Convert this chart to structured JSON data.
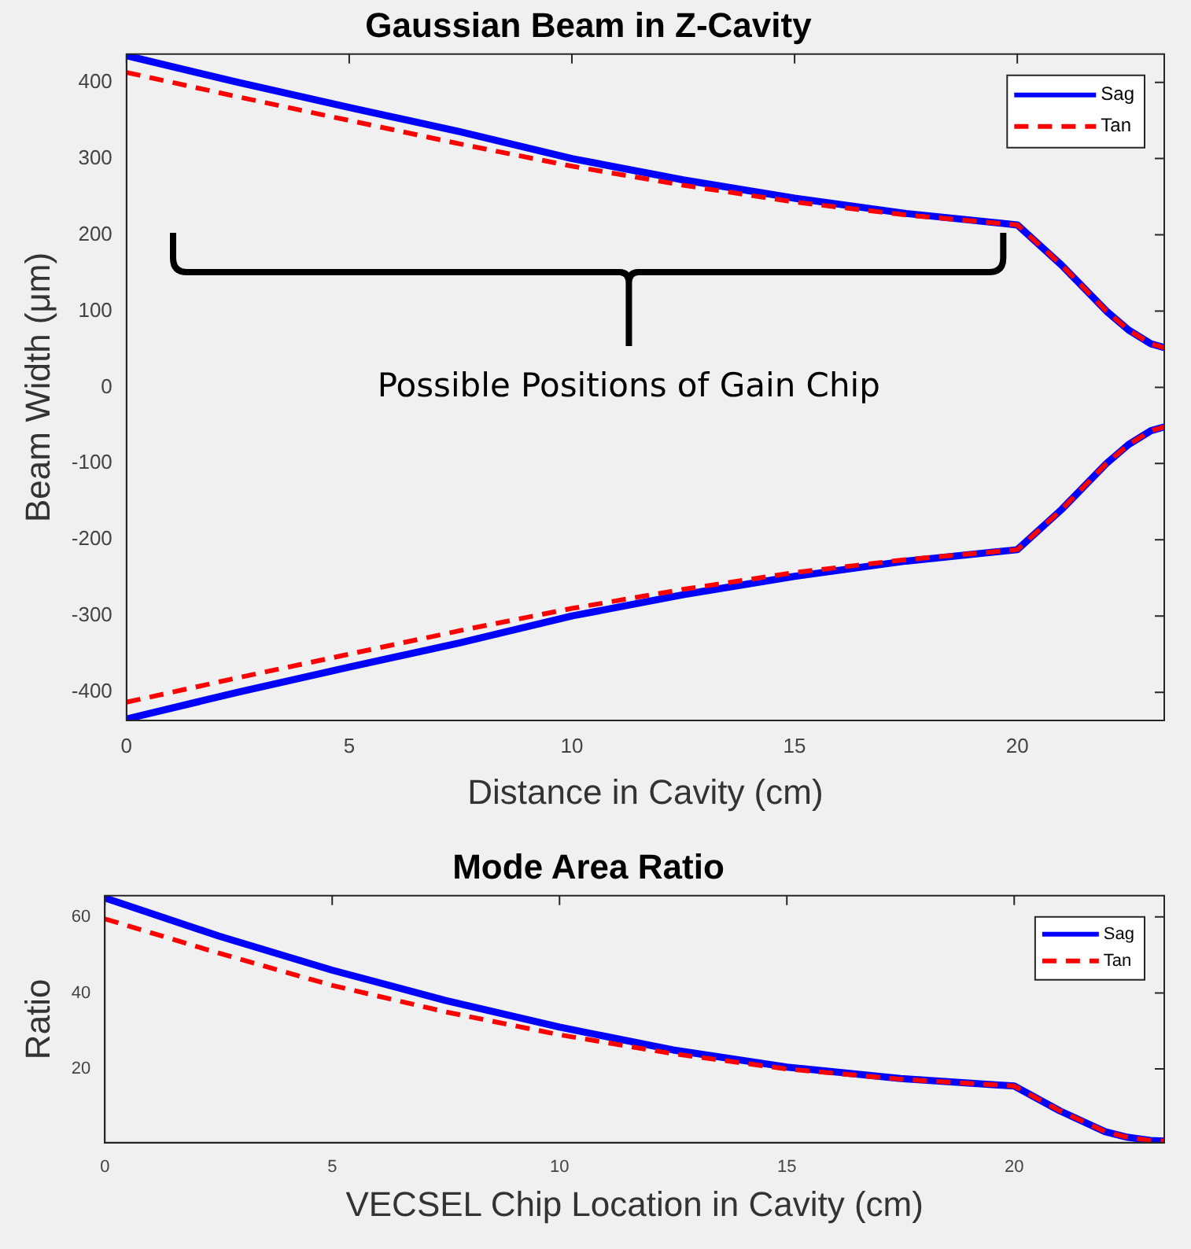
{
  "chart_data": [
    {
      "type": "line",
      "title": "Gaussian Beam in Z-Cavity",
      "xlabel": "Distance in Cavity (cm)",
      "ylabel": "Beam Width (μm)",
      "xlim": [
        0,
        23.3
      ],
      "xticks": [
        0,
        5,
        10,
        15,
        20
      ],
      "ylim": [
        -437,
        437
      ],
      "yticks": [
        -400,
        -300,
        -200,
        -100,
        0,
        100,
        200,
        300,
        400
      ],
      "grid": false,
      "legend": "top right",
      "marker": "none",
      "annotations": [
        "Possible Positions of Gain Chip"
      ],
      "series": [
        {
          "name": "Sag",
          "color": "#0000ff",
          "line_style": "solid",
          "x": [
            0,
            2.5,
            5,
            7.5,
            10,
            12.5,
            15,
            17.5,
            20,
            21,
            22,
            22.5,
            23,
            23.3
          ],
          "values": [
            435,
            400,
            367,
            335,
            300,
            272,
            248,
            228,
            213,
            160,
            100,
            75,
            57,
            52
          ]
        },
        {
          "name": "Tan",
          "color": "#ff0000",
          "line_style": "dashed",
          "x": [
            0,
            2.5,
            5,
            7.5,
            10,
            12.5,
            15,
            17.5,
            20,
            21,
            22,
            22.5,
            23,
            23.3
          ],
          "values": [
            413,
            381,
            350,
            319,
            290,
            265,
            243,
            226,
            213,
            160,
            100,
            75,
            57,
            52
          ]
        },
        {
          "color": "#0000ff",
          "line_style": "solid",
          "x": [
            0,
            2.5,
            5,
            7.5,
            10,
            12.5,
            15,
            17.5,
            20,
            21,
            22,
            22.5,
            23,
            23.3
          ],
          "values": [
            -435,
            -400,
            -367,
            -335,
            -300,
            -272,
            -248,
            -228,
            -213,
            -160,
            -100,
            -75,
            -57,
            -52
          ]
        },
        {
          "color": "#ff0000",
          "line_style": "dashed",
          "x": [
            0,
            2.5,
            5,
            7.5,
            10,
            12.5,
            15,
            17.5,
            20,
            21,
            22,
            22.5,
            23,
            23.3
          ],
          "values": [
            -413,
            -381,
            -350,
            -319,
            -290,
            -265,
            -243,
            -226,
            -213,
            -160,
            -100,
            -75,
            -57,
            -52
          ]
        }
      ]
    },
    {
      "type": "line",
      "title": "Mode Area Ratio",
      "xlabel": "VECSEL Chip Location in Cavity (cm)",
      "ylabel": "Ratio",
      "xlim": [
        0,
        23.3
      ],
      "xticks": [
        0,
        5,
        10,
        15,
        20
      ],
      "ylim": [
        0.6,
        65.6
      ],
      "yticks": [
        20,
        40,
        60
      ],
      "grid": false,
      "legend": "top right",
      "marker": "none",
      "series": [
        {
          "name": "Sag",
          "color": "#0000ff",
          "line_style": "solid",
          "x": [
            0,
            2.5,
            5,
            7.5,
            10,
            12.5,
            15,
            17.5,
            20,
            21,
            22,
            22.5,
            23,
            23.3
          ],
          "values": [
            65,
            55,
            46,
            38,
            31,
            25,
            20.5,
            17.5,
            15.5,
            9,
            3.5,
            2,
            1.2,
            1
          ]
        },
        {
          "name": "Tan",
          "color": "#ff0000",
          "line_style": "dashed",
          "x": [
            0,
            2.5,
            5,
            7.5,
            10,
            12.5,
            15,
            17.5,
            20,
            21,
            22,
            22.5,
            23,
            23.3
          ],
          "values": [
            59.5,
            50.5,
            42,
            35,
            29,
            24,
            20,
            17.3,
            15.5,
            9,
            3.5,
            2,
            1.2,
            1
          ]
        }
      ]
    }
  ]
}
